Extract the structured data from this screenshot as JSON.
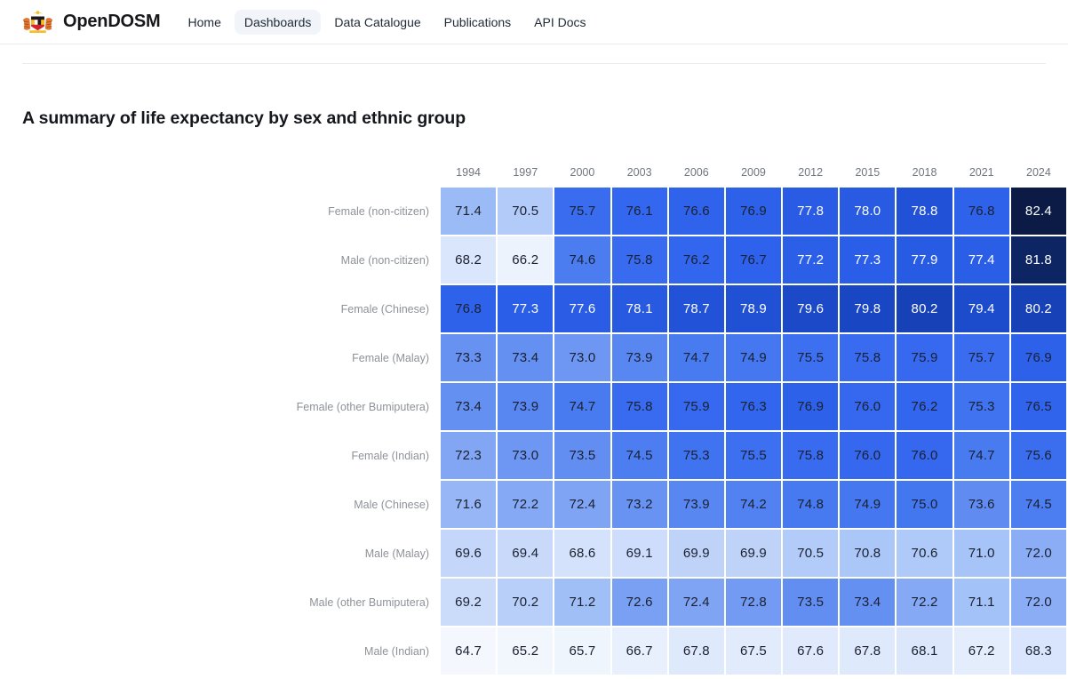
{
  "header": {
    "brand": "OpenDOSM",
    "logo": "malaysia-coat-of-arms",
    "nav": [
      {
        "label": "Home",
        "active": false
      },
      {
        "label": "Dashboards",
        "active": true
      },
      {
        "label": "Data Catalogue",
        "active": false
      },
      {
        "label": "Publications",
        "active": false
      },
      {
        "label": "API Docs",
        "active": false
      }
    ]
  },
  "main": {
    "title": "A summary of life expectancy by sex and ethnic group"
  },
  "chart_data": {
    "type": "heatmap",
    "title": "A summary of life expectancy by sex and ethnic group",
    "unit": "years of life expectancy",
    "columns": [
      "1994",
      "1997",
      "2000",
      "2003",
      "2006",
      "2009",
      "2012",
      "2015",
      "2018",
      "2021",
      "2024"
    ],
    "rows": [
      {
        "label": "Female (non-citizen)",
        "values": [
          71.4,
          70.5,
          75.7,
          76.1,
          76.6,
          76.9,
          77.8,
          78.0,
          78.8,
          76.8,
          82.4
        ]
      },
      {
        "label": "Male (non-citizen)",
        "values": [
          68.2,
          66.2,
          74.6,
          75.8,
          76.2,
          76.7,
          77.2,
          77.3,
          77.9,
          77.4,
          81.8
        ]
      },
      {
        "label": "Female (Chinese)",
        "values": [
          76.8,
          77.3,
          77.6,
          78.1,
          78.7,
          78.9,
          79.6,
          79.8,
          80.2,
          79.4,
          80.2
        ]
      },
      {
        "label": "Female (Malay)",
        "values": [
          73.3,
          73.4,
          73.0,
          73.9,
          74.7,
          74.9,
          75.5,
          75.8,
          75.9,
          75.7,
          76.9
        ]
      },
      {
        "label": "Female (other Bumiputera)",
        "values": [
          73.4,
          73.9,
          74.7,
          75.8,
          75.9,
          76.3,
          76.9,
          76.0,
          76.2,
          75.3,
          76.5
        ]
      },
      {
        "label": "Female (Indian)",
        "values": [
          72.3,
          73.0,
          73.5,
          74.5,
          75.3,
          75.5,
          75.8,
          76.0,
          76.0,
          74.7,
          75.6
        ]
      },
      {
        "label": "Male (Chinese)",
        "values": [
          71.6,
          72.2,
          72.4,
          73.2,
          73.9,
          74.2,
          74.8,
          74.9,
          75.0,
          73.6,
          74.5
        ]
      },
      {
        "label": "Male (Malay)",
        "values": [
          69.6,
          69.4,
          68.6,
          69.1,
          69.9,
          69.9,
          70.5,
          70.8,
          70.6,
          71.0,
          72.0
        ]
      },
      {
        "label": "Male (other Bumiputera)",
        "values": [
          69.2,
          70.2,
          71.2,
          72.6,
          72.4,
          72.8,
          73.5,
          73.4,
          72.2,
          71.1,
          72.0
        ]
      },
      {
        "label": "Male (Indian)",
        "values": [
          64.7,
          65.2,
          65.7,
          66.7,
          67.8,
          67.5,
          67.6,
          67.8,
          68.1,
          67.2,
          68.3
        ]
      }
    ],
    "value_format": "one-decimal",
    "legend_position": "none",
    "grid": false,
    "color_scale": {
      "stops": [
        [
          64.0,
          "#f7fafe"
        ],
        [
          66.0,
          "#eef4fd"
        ],
        [
          68.0,
          "#dde8fc"
        ],
        [
          69.0,
          "#cfdefb"
        ],
        [
          70.0,
          "#bdd2f9"
        ],
        [
          71.0,
          "#a6c4f7"
        ],
        [
          72.0,
          "#8badf5"
        ],
        [
          73.0,
          "#6e97f3"
        ],
        [
          74.0,
          "#5685f1"
        ],
        [
          75.0,
          "#4377f0"
        ],
        [
          76.0,
          "#3568ef"
        ],
        [
          77.0,
          "#2c60ea"
        ],
        [
          78.0,
          "#285ae2"
        ],
        [
          79.0,
          "#1f4fd3"
        ],
        [
          80.0,
          "#1845c0"
        ],
        [
          81.0,
          "#123393"
        ],
        [
          82.0,
          "#0d2257"
        ],
        [
          82.5,
          "#0a1940"
        ]
      ],
      "light_text_threshold": 77,
      "dark_text": "#1a2030",
      "light_text": "#ffffff"
    }
  }
}
